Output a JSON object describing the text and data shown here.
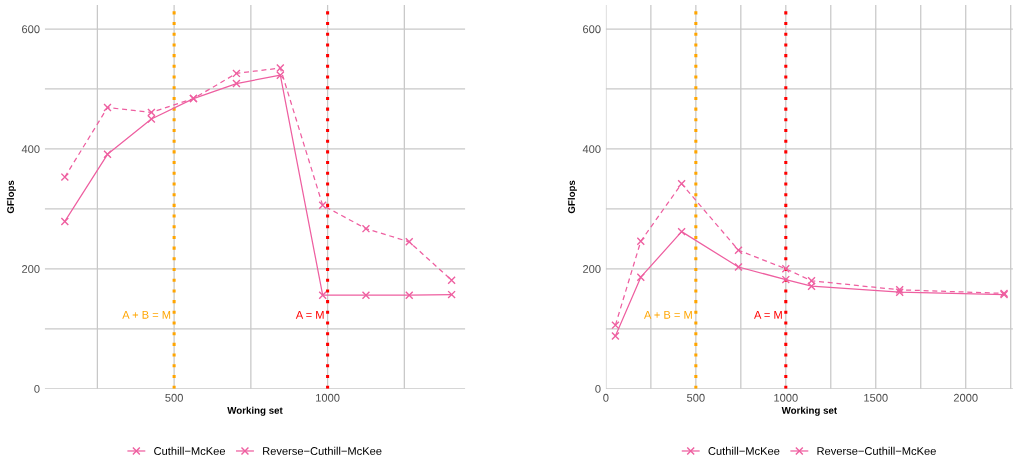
{
  "chart_data": [
    {
      "type": "line",
      "xlabel": "Working set",
      "ylabel": "GFlops",
      "xlim": [
        79,
        1448
      ],
      "ylim": [
        0,
        640
      ],
      "xticks": [
        {
          "value": 250,
          "label": null
        },
        500,
        {
          "value": 750,
          "label": null
        },
        1000,
        {
          "value": 1250,
          "label": null
        }
      ],
      "yticks": [
        0,
        {
          "value": 100,
          "label": null
        },
        200,
        {
          "value": 300,
          "label": null
        },
        400,
        {
          "value": 500,
          "label": null
        },
        600
      ],
      "grid": true,
      "legend": "bottom",
      "marker": "cross",
      "series": [
        {
          "name": "Cuthill−McKee",
          "color": "#ee5fa0",
          "line_style": "solid",
          "x": [
            144,
            283,
            426,
            563,
            703,
            846,
            984,
            1125,
            1266,
            1404
          ],
          "values": [
            279,
            391,
            450,
            484,
            509,
            523,
            156,
            156,
            156,
            157
          ]
        },
        {
          "name": "Reverse−Cuthill−McKee",
          "color": "#ee5fa0",
          "line_style": "dashed",
          "x": [
            144,
            283,
            426,
            563,
            703,
            846,
            984,
            1125,
            1266,
            1404
          ],
          "values": [
            353,
            469,
            461,
            484,
            526,
            535,
            306,
            267,
            245,
            181
          ]
        }
      ],
      "ref_lines": [
        {
          "axis": "x",
          "value": 500,
          "label": "A + B = M",
          "color": "#ffa500",
          "line_style": "dotted"
        },
        {
          "axis": "x",
          "value": 1000,
          "label": "A = M",
          "color": "#ff0000",
          "line_style": "dotted"
        }
      ]
    },
    {
      "type": "line",
      "xlabel": "Working set",
      "ylabel": "GFlops",
      "xlim": [
        0,
        2262
      ],
      "ylim": [
        0,
        640
      ],
      "xticks": [
        0,
        {
          "value": 250,
          "label": null
        },
        500,
        {
          "value": 750,
          "label": null
        },
        1000,
        {
          "value": 1250,
          "label": null
        },
        1500,
        {
          "value": 1750,
          "label": null
        },
        2000,
        {
          "value": 2250,
          "label": null
        }
      ],
      "yticks": [
        0,
        {
          "value": 100,
          "label": null
        },
        200,
        {
          "value": 300,
          "label": null
        },
        400,
        {
          "value": 500,
          "label": null
        },
        600
      ],
      "grid": true,
      "legend": "bottom",
      "marker": "cross",
      "series": [
        {
          "name": "Cuthill−McKee",
          "color": "#ee5fa0",
          "line_style": "solid",
          "x": [
            53,
            194,
            421,
            737,
            1000,
            1143,
            1633,
            2213
          ],
          "values": [
            88,
            186,
            262,
            203,
            182,
            171,
            161,
            157
          ]
        },
        {
          "name": "Reverse−Cuthill−McKee",
          "color": "#ee5fa0",
          "line_style": "dashed",
          "x": [
            53,
            194,
            421,
            737,
            1000,
            1143,
            1633,
            2213
          ],
          "values": [
            106,
            246,
            342,
            231,
            200,
            180,
            165,
            159
          ]
        }
      ],
      "ref_lines": [
        {
          "axis": "x",
          "value": 500,
          "label": "A + B = M",
          "color": "#ffa500",
          "line_style": "dotted"
        },
        {
          "axis": "x",
          "value": 1000,
          "label": "A = M",
          "color": "#ff0000",
          "line_style": "dotted"
        }
      ]
    }
  ]
}
